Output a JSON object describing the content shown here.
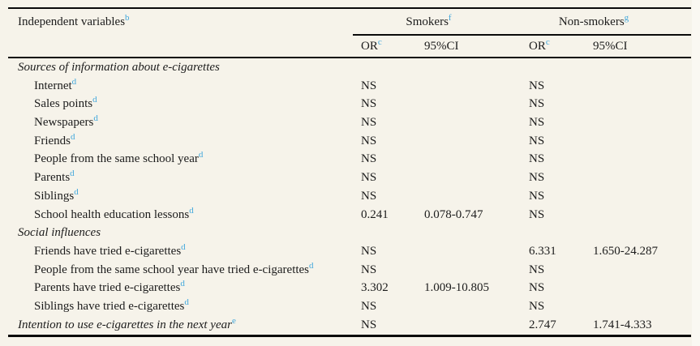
{
  "table": {
    "col1_header": {
      "label": "Independent variables",
      "sup": "b"
    },
    "groups": [
      {
        "label": "Smokers",
        "sup": "f"
      },
      {
        "label": "Non-smokers",
        "sup": "g"
      }
    ],
    "subheaders": {
      "or_label": "OR",
      "or_sup": "c",
      "ci_label": "95%CI"
    },
    "rows": [
      {
        "type": "section",
        "italic": true,
        "indent": 0,
        "label": "Sources of information about e-cigarettes",
        "sup": "",
        "or1": "",
        "ci1": "",
        "or2": "",
        "ci2": ""
      },
      {
        "type": "item",
        "italic": false,
        "indent": 1,
        "label": "Internet",
        "sup": "d",
        "or1": "NS",
        "ci1": "",
        "or2": "NS",
        "ci2": ""
      },
      {
        "type": "item",
        "italic": false,
        "indent": 1,
        "label": "Sales points",
        "sup": "d",
        "or1": "NS",
        "ci1": "",
        "or2": "NS",
        "ci2": ""
      },
      {
        "type": "item",
        "italic": false,
        "indent": 1,
        "label": "Newspapers",
        "sup": "d",
        "or1": "NS",
        "ci1": "",
        "or2": "NS",
        "ci2": ""
      },
      {
        "type": "item",
        "italic": false,
        "indent": 1,
        "label": "Friends",
        "sup": "d",
        "or1": "NS",
        "ci1": "",
        "or2": "NS",
        "ci2": ""
      },
      {
        "type": "item",
        "italic": false,
        "indent": 1,
        "label": "People from the same school year",
        "sup": "d",
        "or1": "NS",
        "ci1": "",
        "or2": "NS",
        "ci2": ""
      },
      {
        "type": "item",
        "italic": false,
        "indent": 1,
        "label": "Parents",
        "sup": "d",
        "or1": "NS",
        "ci1": "",
        "or2": "NS",
        "ci2": ""
      },
      {
        "type": "item",
        "italic": false,
        "indent": 1,
        "label": "Siblings",
        "sup": "d",
        "or1": "NS",
        "ci1": "",
        "or2": "NS",
        "ci2": ""
      },
      {
        "type": "item",
        "italic": false,
        "indent": 1,
        "label": "School health education lessons",
        "sup": "d",
        "or1": "0.241",
        "ci1": "0.078-0.747",
        "or2": "NS",
        "ci2": ""
      },
      {
        "type": "section",
        "italic": true,
        "indent": 0,
        "label": "Social influences",
        "sup": "",
        "or1": "",
        "ci1": "",
        "or2": "",
        "ci2": ""
      },
      {
        "type": "item",
        "italic": false,
        "indent": 1,
        "label": "Friends have tried e-cigarettes",
        "sup": "d",
        "or1": "NS",
        "ci1": "",
        "or2": "6.331",
        "ci2": "1.650-24.287"
      },
      {
        "type": "item",
        "italic": false,
        "indent": 1,
        "label": "People from the same school year have tried e-cigarettes",
        "sup": "d",
        "or1": "NS",
        "ci1": "",
        "or2": "NS",
        "ci2": ""
      },
      {
        "type": "item",
        "italic": false,
        "indent": 1,
        "label": "Parents have tried e-cigarettes",
        "sup": "d",
        "or1": "3.302",
        "ci1": "1.009-10.805",
        "or2": "NS",
        "ci2": ""
      },
      {
        "type": "item",
        "italic": false,
        "indent": 1,
        "label": "Siblings have tried e-cigarettes",
        "sup": "d",
        "or1": "NS",
        "ci1": "",
        "or2": "NS",
        "ci2": ""
      },
      {
        "type": "item",
        "italic": true,
        "indent": 0,
        "label": "Intention to use e-cigarettes in the next year",
        "sup": "e",
        "or1": "NS",
        "ci1": "",
        "or2": "2.747",
        "ci2": "1.741-4.333"
      }
    ]
  },
  "colors": {
    "background": "#f6f3ea",
    "superscript_blue": "#41a7dc",
    "rule_black": "#0a0a0a",
    "text": "#1c1c1c"
  }
}
